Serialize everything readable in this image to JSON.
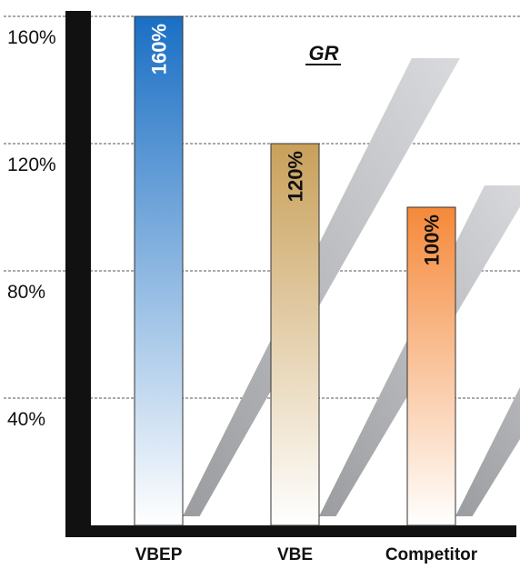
{
  "chart_data": {
    "type": "bar",
    "title": "GR",
    "categories": [
      "VBEP",
      "VBE",
      "Competitor"
    ],
    "values": [
      160,
      120,
      100
    ],
    "data_labels": [
      "160%",
      "120%",
      "100%"
    ],
    "ylim": [
      0,
      160
    ],
    "yticks": [
      40,
      80,
      120,
      160
    ],
    "ytick_labels": [
      "40%",
      "80%",
      "120%",
      "160%"
    ],
    "xlabel": "",
    "ylabel": "",
    "grid": true,
    "grid_style": "dashed",
    "colors": {
      "VBEP": [
        "#1a6fc4",
        "#ffffff"
      ],
      "VBE": [
        "#c9a05a",
        "#ffffff"
      ],
      "Competitor": [
        "#f5893a",
        "#ffffff"
      ],
      "label_VBEP": "#ffffff",
      "label_VBE": "#111111",
      "label_Competitor": "#111111",
      "axis": "#111111",
      "shadow": "#bdbfc3"
    }
  }
}
